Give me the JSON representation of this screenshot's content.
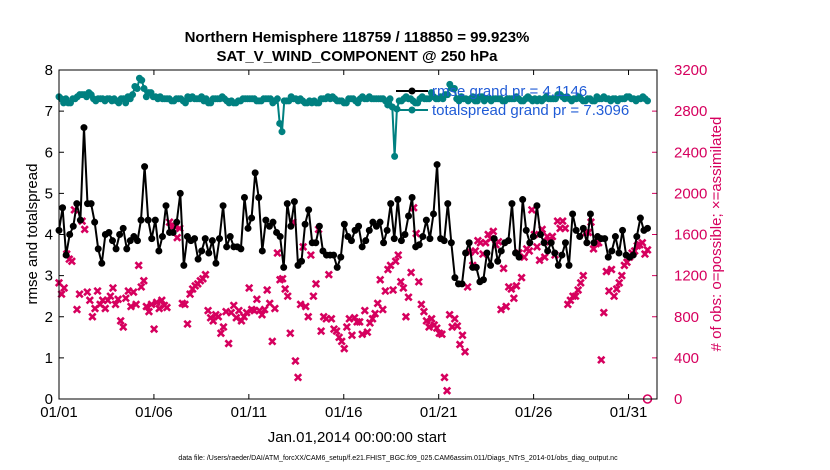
{
  "chart_data": {
    "type": "line",
    "title": "Northern Hemisphere 118759 / 118850 = 99.923%",
    "subtitle": "SAT_V_WIND_COMPONENT @ 250 hPa",
    "xlabel": "Jan.01,2014 00:00:00 start",
    "ylabel": "rmse and totalspread",
    "ylabel_right": "# of obs: o=possible; ×=assimilated",
    "footnote": "data file: /Users/raeder/DAI/ATM_forcXX/CAM6_setup/f.e21.FHIST_BGC.f09_025.CAM6assim.011/Diags_NTrS_2014-01/obs_diag_output.nc",
    "xlim": [
      0,
      31.5
    ],
    "ylim": [
      0,
      8
    ],
    "ylim_right": [
      0,
      3200
    ],
    "x_ticks": [
      0,
      5,
      10,
      15,
      20,
      25,
      30
    ],
    "x_tick_labels": [
      "01/01",
      "01/06",
      "01/11",
      "01/16",
      "01/21",
      "01/26",
      "01/31"
    ],
    "y_tick_labels": [
      "0",
      "1",
      "2",
      "3",
      "4",
      "5",
      "6",
      "7",
      "8"
    ],
    "y_right_tick_labels": [
      "0",
      "400",
      "800",
      "1200",
      "1600",
      "2000",
      "2400",
      "2800",
      "3200"
    ],
    "legend": [
      "rmse grand pr = 4.1146",
      "totalspread grand pr = 7.3096"
    ],
    "legend_location": "top-right",
    "colors": {
      "rmse": "#000000",
      "totalspread": "#008080",
      "obs": "#d6005e",
      "legend_text": "#1f5bd6"
    },
    "series": [
      {
        "name": "rmse",
        "axis": "left",
        "marker": "circle",
        "values": [
          4.1,
          4.65,
          3.5,
          4.0,
          4.2,
          4.75,
          4.35,
          6.6,
          4.75,
          4.75,
          4.3,
          3.65,
          3.3,
          4.0,
          4.05,
          3.85,
          3.65,
          4.0,
          4.15,
          3.65,
          3.85,
          3.95,
          3.85,
          4.35,
          5.65,
          4.35,
          3.9,
          4.35,
          3.6,
          3.95,
          4.7,
          4.05,
          4.05,
          4.3,
          5.0,
          3.25,
          3.95,
          3.85,
          3.9,
          3.4,
          3.6,
          3.9,
          3.55,
          3.85,
          3.3,
          3.9,
          4.7,
          3.7,
          3.95,
          3.7,
          3.7,
          3.65,
          4.9,
          4.15,
          4.4,
          5.5,
          4.9,
          3.6,
          4.35,
          4.2,
          4.3,
          4.05,
          3.95,
          3.2,
          4.75,
          4.2,
          4.8,
          3.25,
          3.35,
          4.25,
          4.6,
          3.8,
          3.8,
          4.2,
          3.6,
          3.5,
          3.5,
          3.5,
          3.2,
          3.45,
          4.25,
          3.95,
          3.85,
          4.1,
          4.2,
          3.7,
          3.85,
          4.1,
          4.3,
          4.2,
          4.3,
          3.8,
          4.1,
          4.75,
          3.9,
          4.85,
          3.85,
          4.0,
          4.45,
          4.9,
          3.7,
          3.75,
          3.95,
          4.35,
          3.9,
          4.5,
          5.7,
          3.9,
          3.85,
          4.75,
          3.8,
          2.95,
          2.8,
          2.8,
          3.55,
          3.8,
          3.2,
          3.2,
          2.85,
          2.9,
          3.55,
          3.25,
          3.9,
          3.35,
          3.6,
          3.8,
          3.85,
          4.75,
          3.55,
          3.45,
          4.85,
          4.1,
          3.8,
          3.95,
          4.7,
          4.0,
          3.8,
          3.6,
          3.8,
          3.55,
          3.25,
          3.5,
          3.8,
          3.25,
          4.5,
          4.1,
          3.95,
          4.15,
          3.8,
          4.5,
          3.8,
          3.95,
          3.9,
          3.9,
          3.45,
          3.6,
          3.95,
          3.55,
          4.1,
          3.5,
          3.45,
          3.5,
          3.95,
          4.4,
          4.1,
          4.15
        ]
      },
      {
        "name": "totalspread",
        "axis": "left",
        "marker": "circle",
        "values": [
          7.35,
          7.3,
          7.2,
          7.3,
          7.2,
          7.2,
          7.3,
          7.3,
          7.35,
          7.4,
          7.4,
          7.4,
          7.35,
          7.45,
          7.4,
          7.3,
          7.25,
          7.3,
          7.3,
          7.3,
          7.25,
          7.3,
          7.3,
          7.25,
          7.3,
          7.25,
          7.2,
          7.3,
          7.3,
          7.2,
          7.35,
          7.3,
          7.4,
          7.6,
          7.55,
          7.8,
          7.75,
          7.55,
          7.35,
          7.45,
          7.45,
          7.35,
          7.35,
          7.3,
          7.35,
          7.3,
          7.3,
          7.3,
          7.3,
          7.25,
          7.25,
          7.3,
          7.3,
          7.3,
          7.25,
          7.2,
          7.35,
          7.3,
          7.35,
          7.3,
          7.3,
          7.3,
          7.35,
          7.25,
          7.3,
          7.2,
          7.2,
          7.3,
          7.3,
          7.3,
          7.3,
          7.35,
          7.3,
          7.25,
          7.2,
          7.25,
          7.2,
          7.2,
          7.25,
          7.25,
          7.3,
          7.3,
          7.3,
          7.3,
          7.3,
          7.3,
          7.25,
          7.25,
          7.25,
          7.3,
          7.3,
          7.3,
          7.3,
          7.2,
          7.25,
          7.3,
          6.7,
          6.5,
          7.25,
          7.25,
          7.25,
          7.35,
          7.3,
          7.3,
          7.25,
          7.3,
          7.25,
          7.2,
          7.2,
          7.25,
          7.2,
          7.25,
          7.2,
          7.2,
          7.3,
          7.3,
          7.3,
          7.35,
          7.3,
          7.35,
          7.3,
          7.25,
          7.25,
          7.25,
          7.2,
          7.2,
          7.3,
          7.3,
          7.3,
          7.25,
          7.2,
          7.3,
          7.35,
          7.3,
          7.3,
          7.35,
          7.3,
          7.3,
          7.3,
          7.3,
          7.3,
          7.3,
          7.25,
          7.15,
          7.3,
          7.1,
          5.9,
          7.05,
          7.25,
          7.25,
          7.3,
          7.35,
          7.3,
          7.3,
          7.25,
          7.2,
          7.2,
          7.3,
          7.35,
          7.3,
          7.3,
          7.3,
          7.45,
          7.35,
          7.3,
          7.3,
          7.35,
          7.3,
          7.4,
          7.4,
          7.65,
          7.55,
          7.55,
          7.3,
          7.25,
          7.35,
          7.3,
          7.3,
          7.25,
          7.3,
          7.35,
          7.25,
          7.25,
          7.35,
          7.35,
          7.25,
          7.3,
          7.3,
          7.25,
          7.3,
          7.3,
          7.3,
          7.3,
          7.25,
          7.25,
          7.3,
          7.3,
          7.3,
          7.3,
          7.35,
          7.3,
          7.25,
          7.25,
          7.3,
          7.35,
          7.3,
          7.25,
          7.3,
          7.25,
          7.3,
          7.25,
          7.3,
          7.35,
          7.3,
          7.3,
          7.3,
          7.3,
          7.4,
          7.4,
          7.35,
          7.3,
          7.35,
          7.3,
          7.25,
          7.3,
          7.3,
          7.35,
          7.3,
          7.25,
          7.25,
          7.3,
          7.3,
          7.25,
          7.25,
          7.35,
          7.3,
          7.3,
          7.35,
          7.3,
          7.3,
          7.25,
          7.3,
          7.3,
          7.25,
          7.3,
          7.3,
          7.3,
          7.35,
          7.35,
          7.3,
          7.3,
          7.25,
          7.3,
          7.3,
          7.35,
          7.3,
          7.25
        ]
      },
      {
        "name": "# of obs assimilated",
        "axis": "right",
        "marker": "x",
        "values": [
          1130,
          1020,
          1080,
          1410,
          1360,
          1340,
          1840,
          870,
          1020,
          1730,
          1650,
          1040,
          960,
          800,
          880,
          1050,
          920,
          960,
          880,
          960,
          1000,
          1080,
          920,
          970,
          760,
          700,
          980,
          1050,
          900,
          1040,
          920,
          1300,
          1090,
          1150,
          900,
          850,
          920,
          680,
          940,
          880,
          960,
          910,
          890,
          1720,
          1680,
          1680,
          1570,
          1660,
          930,
          920,
          730,
          1020,
          1070,
          1100,
          1120,
          1150,
          1170,
          1210,
          860,
          790,
          760,
          820,
          800,
          640,
          700,
          850,
          540,
          840,
          910,
          790,
          860,
          760,
          800,
          840,
          1080,
          870,
          860,
          970,
          860,
          820,
          870,
          1060,
          930,
          560,
          880,
          1420,
          1160,
          1170,
          1070,
          1000,
          640,
          1720,
          370,
          210,
          920,
          1480,
          900,
          800,
          1400,
          1000,
          1120,
          1650,
          660,
          800,
          780,
          1210,
          780,
          680,
          660,
          600,
          560,
          490,
          700,
          780,
          620,
          790,
          750,
          750,
          630,
          860,
          650,
          740,
          780,
          830,
          930,
          1160,
          870,
          1050,
          1260,
          1300,
          1060,
          1340,
          1400,
          1140,
          1080,
          800,
          990,
          1230,
          1860,
          1610,
          1140,
          920,
          850,
          760,
          700,
          780,
          720,
          690,
          640,
          630,
          210,
          80,
          820,
          700,
          780,
          710,
          530,
          620,
          460,
          1090,
          1430,
          1300,
          1440,
          1540,
          1520,
          1410,
          1520,
          1600,
          1560,
          1630,
          1500,
          1530,
          870,
          1270,
          900,
          1090,
          1070,
          980,
          1100,
          1420,
          1180,
          1380,
          1460,
          1440,
          1840,
          1600,
          1480,
          1350,
          1650,
          1380,
          1580,
          1530,
          1580,
          1400,
          1730,
          1660,
          1730,
          1660,
          920,
          960,
          1000,
          1000,
          1060,
          1130,
          1200,
          1620,
          1620,
          1720,
          1460,
          1510,
          1520,
          380,
          840,
          1240,
          1050,
          1260,
          1000,
          1070,
          1130,
          1200,
          1300,
          1330,
          1380,
          1420,
          1440,
          1490,
          1500,
          1520,
          1410,
          1450
        ]
      }
    ],
    "possible_marker_at": [
      31.0,
      0
    ]
  }
}
